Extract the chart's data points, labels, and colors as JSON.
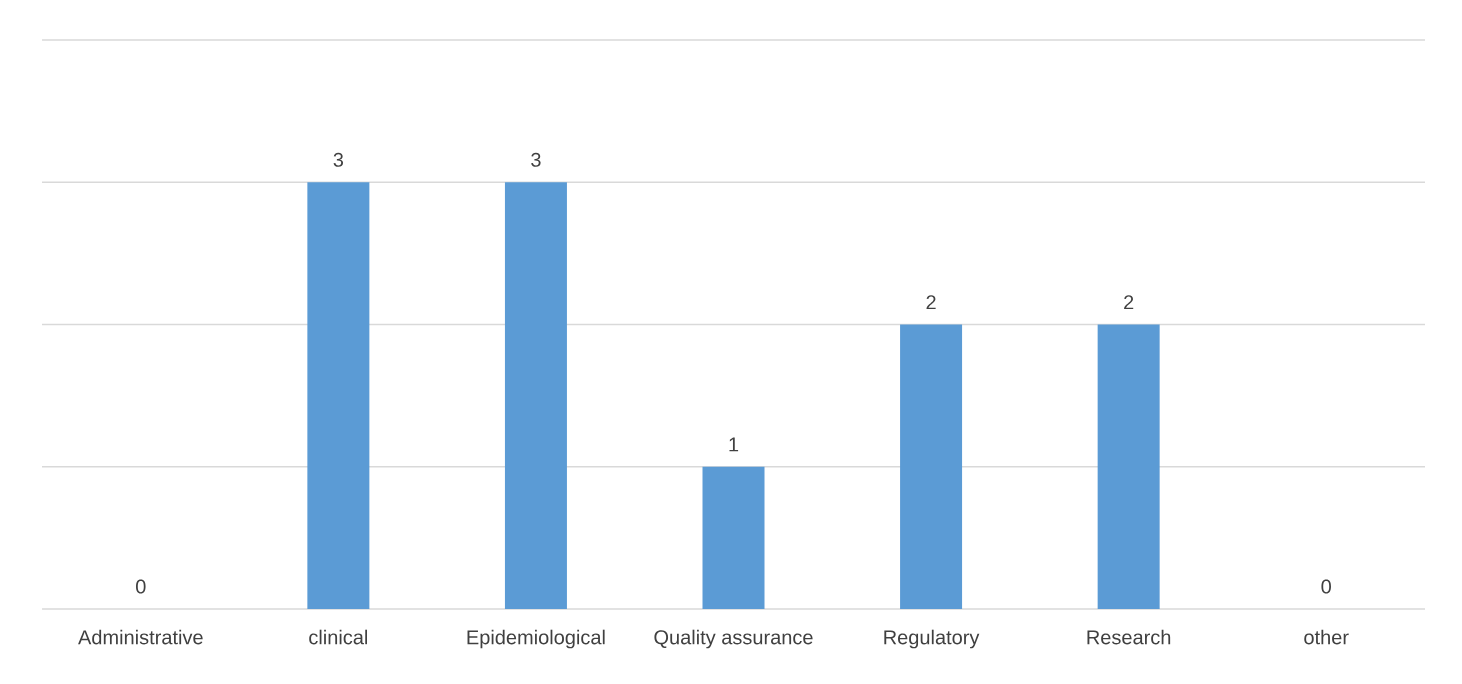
{
  "chart_data": {
    "type": "bar",
    "categories": [
      "Administrative",
      "clinical",
      "Epidemiological",
      "Quality assurance",
      "Regulatory",
      "Research",
      "other"
    ],
    "values": [
      0,
      3,
      3,
      1,
      2,
      2,
      0
    ],
    "color": "#5b9bd5",
    "ylim": [
      0,
      4
    ],
    "yticks": [
      {
        "value": 0,
        "label": null
      },
      {
        "value": 1,
        "label": null
      },
      {
        "value": 2,
        "label": null
      },
      {
        "value": 3,
        "label": null
      },
      {
        "value": 4,
        "label": null
      }
    ],
    "grid": "y",
    "tick_labels": "x",
    "data_labels": true
  }
}
